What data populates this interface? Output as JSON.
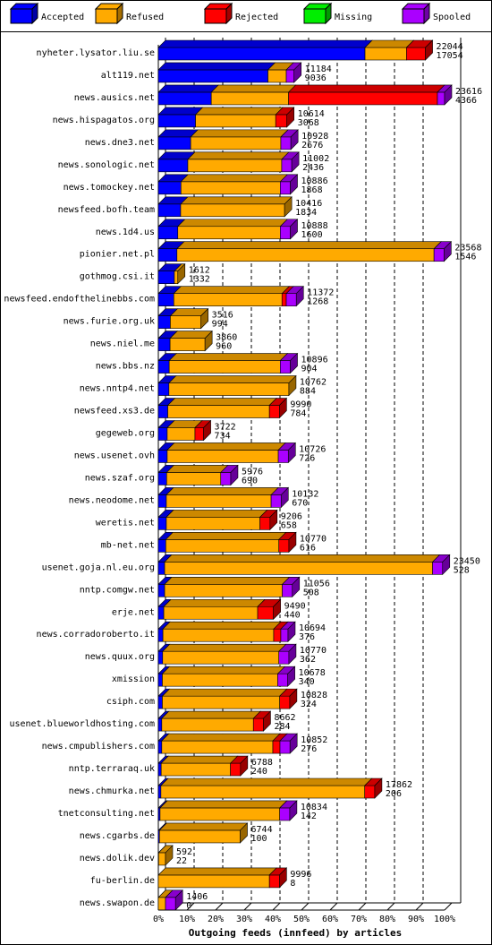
{
  "chart_data": {
    "type": "stacked-bar-3d",
    "orientation": "horizontal",
    "x_label": "Outgoing feeds (innfeed) by articles",
    "categories": [
      "nyheter.lysator.liu.se",
      "alt119.net",
      "news.ausics.net",
      "news.hispagatos.org",
      "news.dne3.net",
      "news.sonologic.net",
      "news.tomockey.net",
      "newsfeed.bofh.team",
      "news.1d4.us",
      "pionier.net.pl",
      "gothmog.csi.it",
      "newsfeed.endofthelinebbs.com",
      "news.furie.org.uk",
      "news.niel.me",
      "news.bbs.nz",
      "news.nntp4.net",
      "newsfeed.xs3.de",
      "gegeweb.org",
      "news.usenet.ovh",
      "news.szaf.org",
      "news.neodome.net",
      "weretis.net",
      "mb-net.net",
      "usenet.goja.nl.eu.org",
      "nntp.comgw.net",
      "erje.net",
      "news.corradoroberto.it",
      "news.quux.org",
      "xmission",
      "csiph.com",
      "usenet.blueworldhosting.com",
      "news.cmpublishers.com",
      "nntp.terraraq.uk",
      "news.chmurka.net",
      "tnetconsulting.net",
      "news.cgarbs.de",
      "news.dolik.dev",
      "fu-berlin.de",
      "news.swapon.de"
    ],
    "offered": [
      22044,
      11184,
      23616,
      10614,
      10928,
      11002,
      10886,
      10416,
      10888,
      23568,
      1612,
      11372,
      3516,
      3860,
      10896,
      10762,
      9990,
      3722,
      10726,
      5976,
      10132,
      9206,
      10770,
      23450,
      11056,
      9490,
      10694,
      10770,
      10678,
      10828,
      8662,
      10852,
      6788,
      17862,
      10834,
      6744,
      592,
      9996,
      1406
    ],
    "accepted_articles": [
      17054,
      9036,
      4366,
      3068,
      2676,
      2436,
      1868,
      1834,
      1600,
      1546,
      1332,
      1268,
      994,
      960,
      904,
      884,
      784,
      734,
      726,
      690,
      670,
      658,
      616,
      528,
      508,
      440,
      376,
      362,
      340,
      324,
      284,
      276,
      240,
      206,
      142,
      100,
      22,
      8,
      0
    ],
    "series": [
      {
        "name": "Accepted",
        "color": "#0000ff",
        "values": [
          72.2,
          38.3,
          18.5,
          13,
          11.3,
          10.3,
          7.9,
          7.8,
          6.8,
          6.5,
          5.6,
          5.4,
          4.2,
          4.1,
          3.8,
          3.7,
          3.3,
          3.1,
          3.1,
          2.9,
          2.8,
          2.8,
          2.6,
          2.2,
          2.2,
          1.9,
          1.6,
          1.5,
          1.4,
          1.4,
          1.2,
          1.2,
          1,
          0.9,
          0.6,
          0.4,
          0.1,
          0,
          0
        ]
      },
      {
        "name": "Refused",
        "color": "#ffaa00",
        "values": [
          14.5,
          6.4,
          27,
          28,
          31.5,
          32.8,
          34.7,
          36.3,
          35.8,
          89.8,
          1.2,
          37.8,
          10.7,
          12.2,
          38.8,
          41.9,
          35.5,
          9.7,
          38.8,
          18.9,
          36.6,
          32.7,
          39.5,
          93.6,
          41.1,
          32.8,
          38.7,
          40.6,
          40.3,
          41,
          32,
          38.8,
          24.2,
          71.2,
          41.8,
          28.2,
          2.4,
          38.8,
          2.5
        ]
      },
      {
        "name": "Rejected",
        "color": "#ff0000",
        "values": [
          6.6,
          0,
          52,
          3.9,
          0,
          0,
          0,
          0,
          0,
          0,
          0,
          1.5,
          0,
          0,
          0,
          0,
          3.5,
          3,
          0,
          0,
          0,
          3.5,
          3.5,
          0,
          0,
          5.5,
          2.5,
          0,
          0,
          3.5,
          3.5,
          2.5,
          3.5,
          3.5,
          0,
          0,
          0,
          3.5,
          0
        ]
      },
      {
        "name": "Missing",
        "color": "#00ee00",
        "values": [
          0,
          0,
          0,
          0,
          0,
          0,
          0,
          0,
          0,
          0,
          0,
          0,
          0,
          0,
          0,
          0,
          0,
          0,
          0,
          0,
          0,
          0,
          0,
          0,
          0,
          0,
          0,
          0,
          0,
          0,
          0,
          0,
          0,
          0,
          0,
          0,
          0,
          0,
          0
        ]
      },
      {
        "name": "Spooled",
        "color": "#aa00ff",
        "values": [
          0,
          2.7,
          2.5,
          0,
          3.5,
          3.5,
          3.5,
          0,
          3.5,
          3.5,
          0,
          3.5,
          0,
          0,
          3.5,
          0,
          0,
          0,
          3.5,
          3.5,
          3.5,
          0,
          0,
          3.5,
          3.5,
          0,
          2.5,
          3.5,
          3.5,
          0,
          0,
          3.5,
          0,
          0,
          3.5,
          0,
          0,
          0,
          3.5
        ]
      }
    ],
    "xlim": [
      0,
      100
    ],
    "xticks": [
      {
        "value": 0,
        "label": "0%"
      },
      {
        "value": 10,
        "label": "10%"
      },
      {
        "value": 20,
        "label": "20%"
      },
      {
        "value": 30,
        "label": "30%"
      },
      {
        "value": 40,
        "label": "40%"
      },
      {
        "value": 50,
        "label": "50%"
      },
      {
        "value": 60,
        "label": "60%"
      },
      {
        "value": 70,
        "label": "70%"
      },
      {
        "value": 80,
        "label": "80%"
      },
      {
        "value": 90,
        "label": "90%"
      },
      {
        "value": 100,
        "label": "100%"
      }
    ],
    "grid": true
  }
}
